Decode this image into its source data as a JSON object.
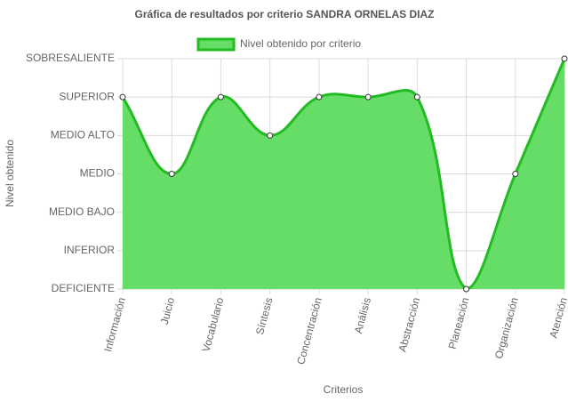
{
  "chart_data": {
    "type": "line",
    "title": "Gráfica de resultados por criterio SANDRA ORNELAS DIAZ",
    "x_label": "Criterios",
    "y_label": "Nivel obtenido",
    "categories": [
      "Información",
      "Juicio",
      "Vocabulario",
      "Síntesis",
      "Concentración",
      "Análisis",
      "Abstracción",
      "Planeación",
      "Organización",
      "Atención"
    ],
    "series": [
      {
        "name": "Nivel obtenido por criterio",
        "color": "#22bb22",
        "fill": "#66dd66",
        "values": [
          5,
          3,
          5,
          4,
          5,
          5,
          5,
          0,
          3,
          6
        ]
      }
    ],
    "ylim": [
      0,
      6
    ],
    "yticks": [
      {
        "value": 0,
        "label": "DEFICIENTE"
      },
      {
        "value": 1,
        "label": "INFERIOR"
      },
      {
        "value": 2,
        "label": "MEDIO BAJO"
      },
      {
        "value": 3,
        "label": "MEDIO"
      },
      {
        "value": 4,
        "label": "MEDIO ALTO"
      },
      {
        "value": 5,
        "label": "SUPERIOR"
      },
      {
        "value": 6,
        "label": "SOBRESALIENTE"
      }
    ],
    "grid": true,
    "legend": "top"
  }
}
